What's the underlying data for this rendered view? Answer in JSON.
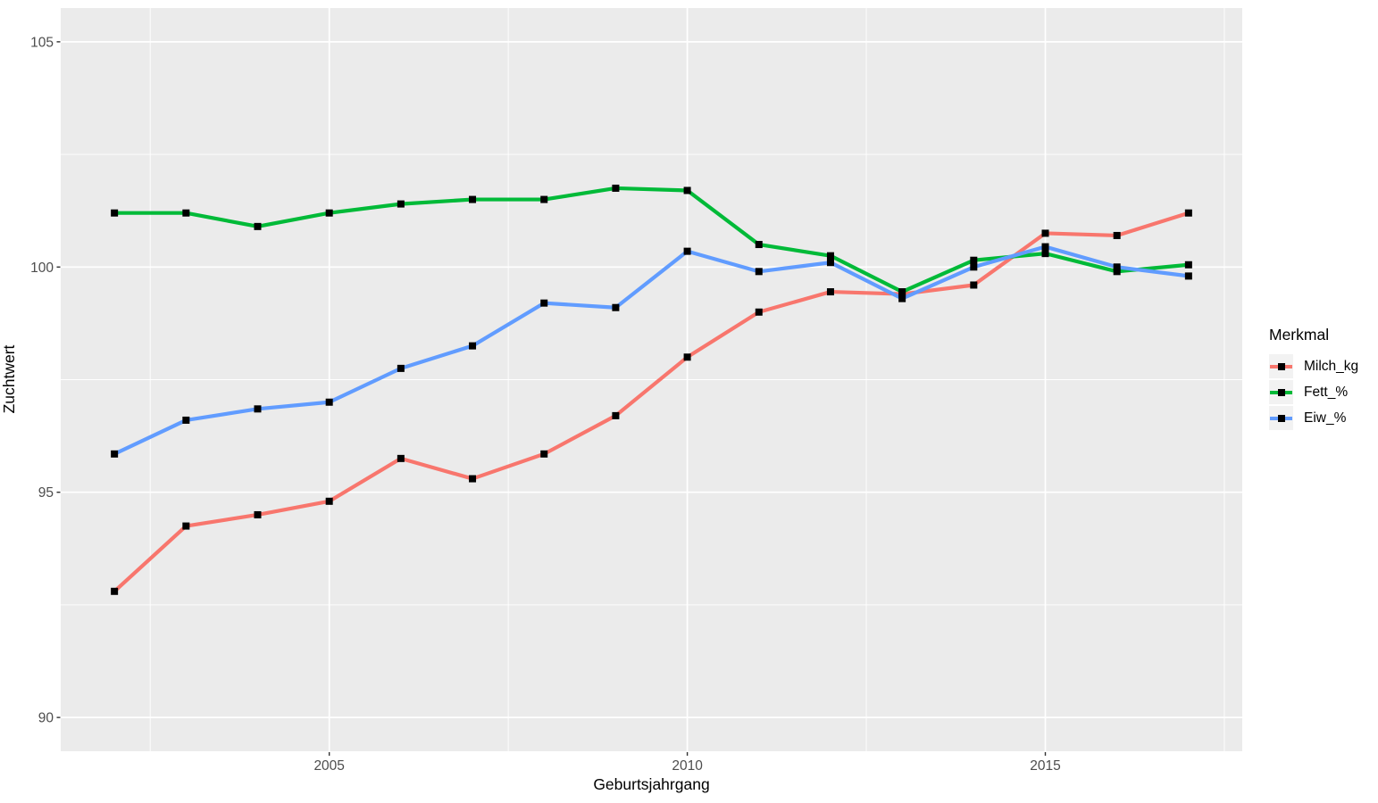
{
  "chart_data": {
    "type": "line",
    "title": "",
    "xlabel": "Geburtsjahrgang",
    "ylabel": "Zuchtwert",
    "legend_title": "Merkmal",
    "legend_position": "right",
    "grid": true,
    "panel_bg": "#EBEBEB",
    "grid_color": "#FFFFFF",
    "legend_key_bg": "#F2F2F2",
    "tick_text_color": "#4D4D4D",
    "marker": {
      "shape": "square",
      "color": "#000000"
    },
    "x": [
      2002,
      2003,
      2004,
      2005,
      2006,
      2007,
      2008,
      2009,
      2010,
      2011,
      2012,
      2013,
      2014,
      2015,
      2016,
      2017
    ],
    "series": [
      {
        "name": "Milch_kg",
        "color": "#F8766D",
        "values": [
          92.8,
          94.25,
          94.5,
          94.8,
          95.75,
          95.3,
          95.85,
          96.7,
          98.0,
          99.0,
          99.45,
          99.4,
          99.6,
          100.75,
          100.7,
          101.2
        ]
      },
      {
        "name": "Fett_%",
        "color": "#00BA38",
        "values": [
          101.2,
          101.2,
          100.9,
          101.2,
          101.4,
          101.5,
          101.5,
          101.75,
          101.7,
          100.5,
          100.25,
          99.45,
          100.15,
          100.3,
          99.9,
          100.05
        ]
      },
      {
        "name": "Eiw_%",
        "color": "#619CFF",
        "values": [
          95.85,
          96.6,
          96.85,
          97.0,
          97.75,
          98.25,
          99.2,
          99.1,
          100.35,
          99.9,
          100.1,
          99.3,
          100.0,
          100.45,
          100.0,
          99.8
        ]
      }
    ],
    "x_ticks": [
      2005,
      2010,
      2015
    ],
    "y_ticks": [
      90,
      95,
      100,
      105
    ],
    "x_minor_ticks": [
      2002.5,
      2007.5,
      2012.5,
      2017.5
    ],
    "y_minor_ticks": [
      92.5,
      97.5,
      102.5
    ],
    "xlim": [
      2001.25,
      2017.75
    ],
    "ylim": [
      89.25,
      105.75
    ]
  }
}
